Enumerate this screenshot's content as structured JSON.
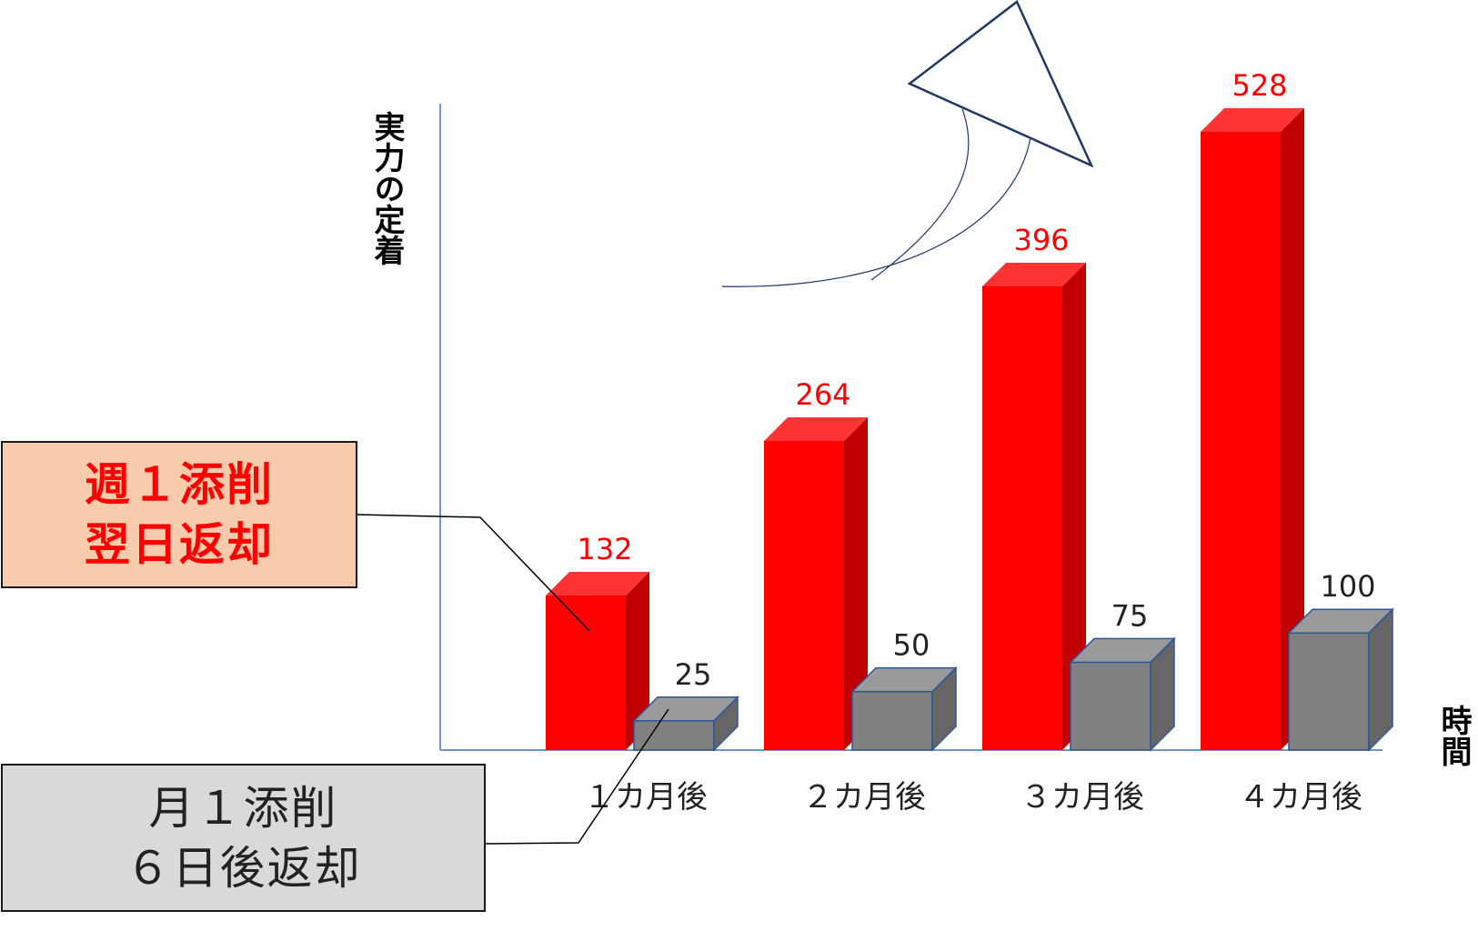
{
  "chart_data": {
    "type": "bar",
    "categories": [
      "１カ月後",
      "２カ月後",
      "３カ月後",
      "４カ月後"
    ],
    "series": [
      {
        "values": [
          132,
          264,
          396,
          528
        ],
        "color": "#ff0000"
      },
      {
        "values": [
          25,
          50,
          75,
          100
        ],
        "color": "#808080"
      }
    ],
    "xlabel": "時間",
    "ylabel": "実力の定着",
    "ylim": [
      0,
      528
    ],
    "grid": false,
    "legend": "callouts-left"
  },
  "callouts": {
    "weekly": {
      "line1": "週１添削",
      "line2": "翌日返却"
    },
    "monthly": {
      "line1": "月１添削",
      "line2": "６日後返却"
    }
  },
  "colors": {
    "red_label": "#ff0000",
    "grey_label": "#222222",
    "axis": "#4472c4",
    "arrow": "#1f3864"
  }
}
